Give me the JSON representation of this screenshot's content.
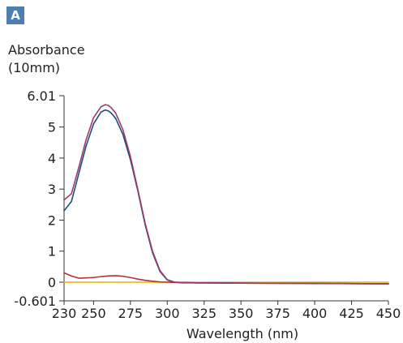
{
  "panel_label": "A",
  "chart_data": {
    "type": "line",
    "title": "",
    "ylabel_line1": "Absorbance",
    "ylabel_line2": "(10mm)",
    "xlabel": "Wavelength (nm)",
    "xlim": [
      230,
      450
    ],
    "ylim": [
      -0.601,
      6.01
    ],
    "x_ticks": [
      230,
      250,
      275,
      300,
      325,
      350,
      375,
      400,
      425,
      450
    ],
    "y_ticks": [
      6.01,
      5,
      4,
      3,
      2,
      1,
      0,
      -0.601
    ],
    "y_tick_labels": [
      "6.01",
      "5",
      "4",
      "3",
      "2",
      "1",
      "0",
      "-0.601"
    ],
    "x_tick_labels": [
      "230",
      "250",
      "275",
      "300",
      "325",
      "350",
      "375",
      "400",
      "425",
      "450"
    ],
    "grid": false,
    "series": [
      {
        "color": "#9b3a6e",
        "x": [
          230,
          235,
          240,
          245,
          250,
          255,
          258,
          260,
          262,
          265,
          270,
          275,
          280,
          285,
          290,
          295,
          300,
          305,
          310,
          320,
          350,
          400,
          450
        ],
        "y": [
          2.65,
          2.85,
          3.7,
          4.6,
          5.3,
          5.65,
          5.72,
          5.7,
          5.62,
          5.45,
          4.9,
          4.05,
          3.0,
          1.9,
          1.0,
          0.38,
          0.08,
          0.0,
          -0.01,
          -0.02,
          -0.03,
          -0.04,
          -0.05
        ]
      },
      {
        "color": "#1f4e79",
        "x": [
          230,
          235,
          240,
          245,
          250,
          255,
          258,
          260,
          262,
          265,
          270,
          275,
          280,
          285,
          290,
          295,
          300,
          305,
          310,
          320,
          350,
          400,
          450
        ],
        "y": [
          2.3,
          2.6,
          3.5,
          4.4,
          5.1,
          5.48,
          5.55,
          5.52,
          5.45,
          5.28,
          4.75,
          3.95,
          2.95,
          1.85,
          0.95,
          0.35,
          0.07,
          0.0,
          -0.01,
          -0.02,
          -0.03,
          -0.04,
          -0.05
        ]
      },
      {
        "color": "#b5332e",
        "x": [
          230,
          235,
          240,
          245,
          250,
          255,
          260,
          265,
          270,
          275,
          280,
          285,
          290,
          295,
          300,
          305,
          310,
          350,
          400,
          450
        ],
        "y": [
          0.3,
          0.2,
          0.13,
          0.14,
          0.15,
          0.18,
          0.2,
          0.21,
          0.19,
          0.15,
          0.1,
          0.06,
          0.03,
          0.01,
          0.0,
          -0.01,
          -0.02,
          -0.03,
          -0.04,
          -0.05
        ]
      },
      {
        "color": "#e8b400",
        "x": [
          230,
          450
        ],
        "y": [
          0.0,
          0.0
        ]
      }
    ]
  }
}
